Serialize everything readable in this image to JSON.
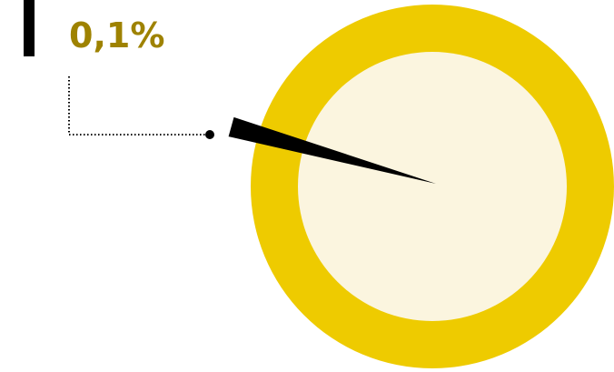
{
  "chart_data": {
    "type": "pie",
    "slices": [
      {
        "value": 0.1,
        "label": "0,1%",
        "highlighted": true
      },
      {
        "value": 99.9,
        "label": ""
      }
    ],
    "title": "",
    "legend": "none"
  },
  "colors": {
    "outer_ring": "#EECB00",
    "inner_disc": "#FBF5DF",
    "highlight_slice": "#000000",
    "value_text": "#9E8200",
    "accent_bar": "#000000",
    "leader_line": "#000000"
  }
}
